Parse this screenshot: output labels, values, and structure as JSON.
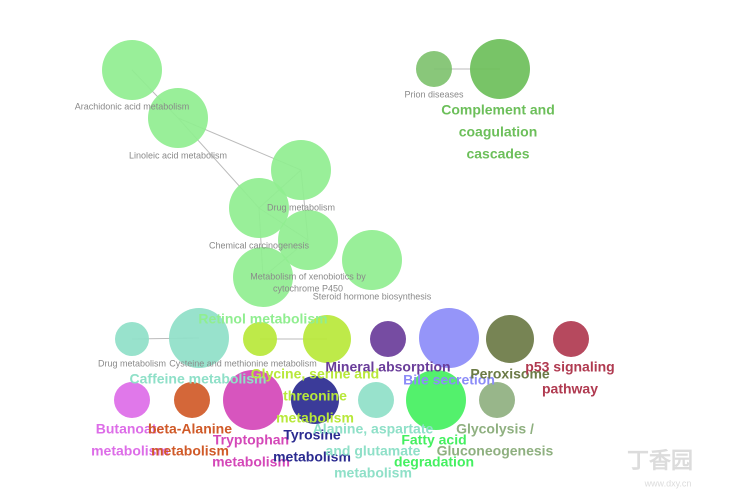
{
  "nodes": [
    {
      "label": [
        "Arachidonic acid metabolism"
      ],
      "color": "#90ee90"
    },
    {
      "label": [
        "Linoleic acid metabolism"
      ],
      "color": "#90ee90"
    },
    {
      "label": [
        "Drug metabolism"
      ],
      "color": "#90ee90"
    },
    {
      "label": [
        "Chemical carcinogenesis"
      ],
      "color": "#90ee90"
    },
    {
      "label": [
        "Metabolism of xenobiotics by",
        "cytochrome P450"
      ],
      "color": "#90ee90"
    },
    {
      "label": [
        "Steroid hormone biosynthesis"
      ],
      "color": "#90ee90"
    },
    {
      "label": [
        "Retinol metabolism"
      ],
      "color": "#90ee90"
    },
    {
      "label": [
        "Prion diseases"
      ],
      "color": "#7fc26f"
    },
    {
      "label": [
        "Complement and",
        "coagulation",
        "cascades"
      ],
      "color": "#6cbf5a"
    },
    {
      "label": [
        "Drug metabolism"
      ],
      "color": "#8fe0c8"
    },
    {
      "label": [
        "Cysteine and methionine metabolism"
      ],
      "color": "#b8e83a"
    },
    {
      "label": [
        "Caffeine metabolism"
      ],
      "color": "#8fe0c8"
    },
    {
      "label": [
        "Glycine, serine and",
        "threonine",
        "metabolism"
      ],
      "color": "#b8e83a"
    },
    {
      "label": [
        "Mineral absorption"
      ],
      "color": "#6a3d9a"
    },
    {
      "label": [
        "Bile secretion"
      ],
      "color": "#8c8cf8"
    },
    {
      "label": [
        "Peroxisome"
      ],
      "color": "#6b7a45"
    },
    {
      "label": [
        "p53 signaling",
        "pathway"
      ],
      "color": "#b03a50"
    },
    {
      "label": [
        "Butanoate",
        "metabolism"
      ],
      "color": "#dd6de8"
    },
    {
      "label": [
        "beta-Alanine",
        "metabolism"
      ],
      "color": "#d05a28"
    },
    {
      "label": [
        "Tryptophan",
        "metabolism"
      ],
      "color": "#d447b8"
    },
    {
      "label": [
        "Tyrosine",
        "metabolism"
      ],
      "color": "#2a2a90"
    },
    {
      "label": [
        "Alanine, aspartate",
        "and glutamate",
        "metabolism"
      ],
      "color": "#8fe0c8"
    },
    {
      "label": [
        "Fatty acid",
        "degradation"
      ],
      "color": "#44f060"
    },
    {
      "label": [
        "Glycolysis /",
        "Gluconeogenesis"
      ],
      "color": "#8fb080"
    }
  ],
  "watermark": {
    "name": "丁香园",
    "url": "www.dxy.cn"
  }
}
